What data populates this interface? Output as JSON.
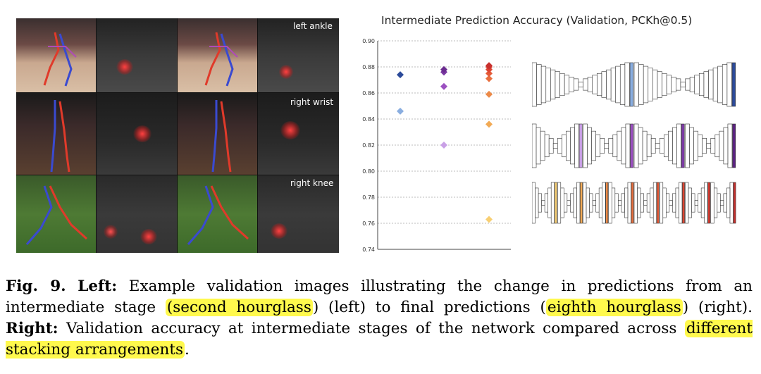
{
  "left_panel": {
    "rows": [
      {
        "label": "left ankle"
      },
      {
        "label": "right wrist"
      },
      {
        "label": "right knee"
      }
    ]
  },
  "chart_data": {
    "type": "scatter",
    "title": "Intermediate Prediction Accuracy (Validation, PCKh@0.5)",
    "xlabel": "",
    "ylabel": "",
    "ylim": [
      0.74,
      0.9
    ],
    "yticks": [
      "0.74",
      "0.76",
      "0.78",
      "0.80",
      "0.82",
      "0.84",
      "0.86",
      "0.88",
      "0.90"
    ],
    "grid": true,
    "series": [
      {
        "group": 1,
        "colors": [
          "#8aaee0",
          "#2b4a9a"
        ],
        "values": [
          0.846,
          0.874
        ]
      },
      {
        "group": 2,
        "colors": [
          "#c9a0e6",
          "#9b50c0",
          "#7b3aa3",
          "#6a2b8f"
        ],
        "values": [
          0.82,
          0.865,
          0.876,
          0.878
        ]
      },
      {
        "group": 3,
        "colors": [
          "#f8cf72",
          "#f2aa55",
          "#ec8a48",
          "#e86f3e",
          "#e45a38",
          "#de4633",
          "#d43a30",
          "#c8302d"
        ],
        "values": [
          0.763,
          0.836,
          0.859,
          0.871,
          0.875,
          0.878,
          0.88,
          0.881
        ]
      }
    ]
  },
  "hourglass_diagram": {
    "arrangements": [
      {
        "stacks": 2,
        "highlight_colors": [
          "#8aaee0",
          "#2b4a9a"
        ]
      },
      {
        "stacks": 4,
        "highlight_colors": [
          "#c9a0e6",
          "#9b50c0",
          "#7b3aa3",
          "#5a2280"
        ]
      },
      {
        "stacks": 8,
        "highlight_colors": [
          "#f8cf72",
          "#f2aa55",
          "#ec8a48",
          "#e86f3e",
          "#e45a38",
          "#de4633",
          "#d43a30",
          "#c8302d"
        ]
      }
    ]
  },
  "caption": {
    "fig_label": "Fig. 9.",
    "left_label": "Left:",
    "text1": " Example validation images illustrating the change in predictions from an intermediate stage ",
    "hl1": "(second hourglass",
    "text2": ") (left) to final predictions (",
    "hl2": "eighth hourglass",
    "text3": ") (right). ",
    "right_label": "Right:",
    "text4": " Validation accuracy at intermediate stages of the network compared across ",
    "hl3": "different stacking arrangements",
    "text5": "."
  }
}
